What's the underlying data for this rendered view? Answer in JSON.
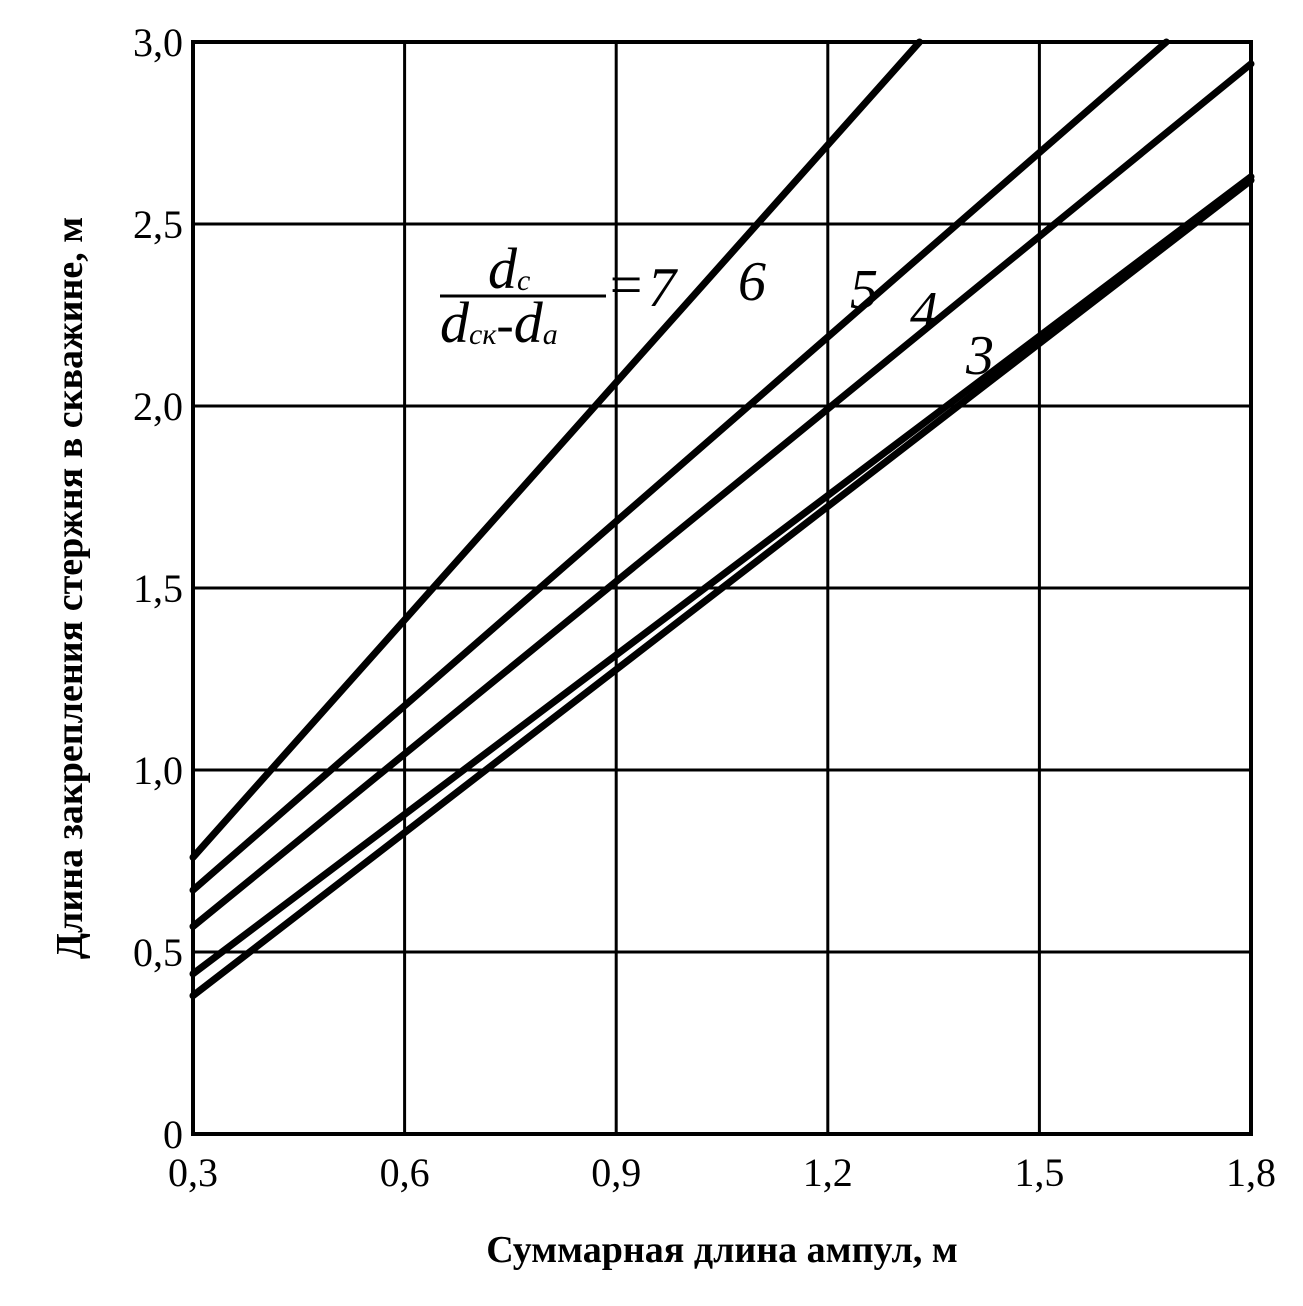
{
  "chart_data": {
    "type": "line",
    "title": "",
    "xlabel": "Суммарная длина ампул, м",
    "ylabel": "Длина закрепления стержня в скважине, м",
    "xlim": [
      0.3,
      1.8
    ],
    "ylim": [
      0,
      3.0
    ],
    "x_ticks": [
      "0,3",
      "0,6",
      "0,9",
      "1,2",
      "1,5",
      "1,8"
    ],
    "y_ticks": [
      "0",
      "0,5",
      "1,0",
      "1,5",
      "2,0",
      "2,5",
      "3,0"
    ],
    "grid": true,
    "legend": "inline labels on curves",
    "ratio_label": {
      "numerator": "d",
      "numerator_sub": "c",
      "denominator": "d",
      "denominator_sub": "cк",
      "minus": "-",
      "denominator2": "d",
      "denominator2_sub": "a",
      "equals": "="
    },
    "series": [
      {
        "name": "7",
        "x": [
          0.3,
          1.33
        ],
        "y": [
          0.76,
          3.0
        ]
      },
      {
        "name": "6",
        "x": [
          0.3,
          1.68
        ],
        "y": [
          0.67,
          3.0
        ]
      },
      {
        "name": "5",
        "x": [
          0.3,
          1.8
        ],
        "y": [
          0.57,
          2.94
        ]
      },
      {
        "name": "4",
        "x": [
          0.3,
          1.8
        ],
        "y": [
          0.44,
          2.63
        ]
      },
      {
        "name": "3",
        "x": [
          0.3,
          1.8
        ],
        "y": [
          0.38,
          2.62
        ]
      }
    ]
  }
}
